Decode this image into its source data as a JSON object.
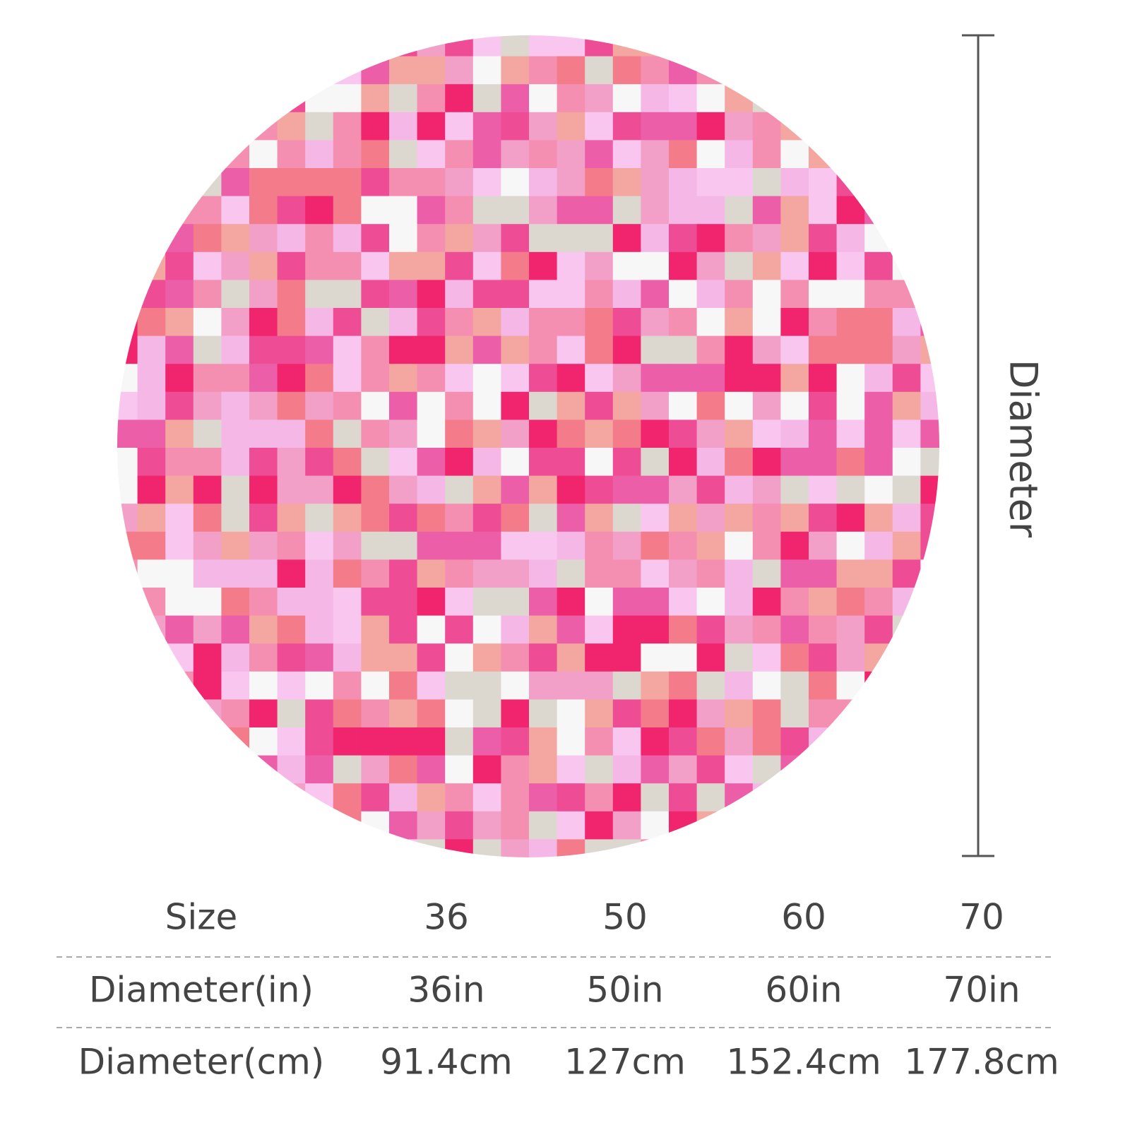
{
  "dimension_label": "Diameter",
  "table": {
    "rows": [
      [
        "Size",
        "36",
        "50",
        "60",
        "70"
      ],
      [
        "Diameter(in)",
        "36in",
        "50in",
        "60in",
        "70in"
      ],
      [
        "Diameter(cm)",
        "91.4cm",
        "127cm",
        "152.4cm",
        "177.8cm"
      ]
    ]
  }
}
